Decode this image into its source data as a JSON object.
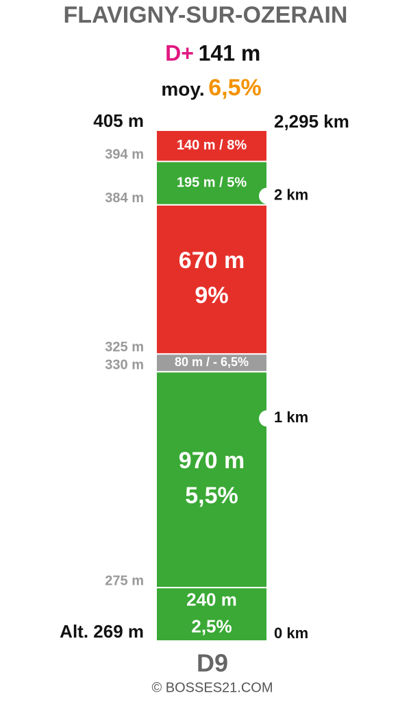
{
  "title": "FLAVIGNY-SUR-OZERAIN",
  "climb": {
    "label": "D+",
    "value": "141 m"
  },
  "average": {
    "label": "moy.",
    "value": "6,5%"
  },
  "total_distance": {
    "value": 2295,
    "label": "2,295 km"
  },
  "segments": [
    {
      "length": 240,
      "text": [
        "240 m",
        "2,5%"
      ],
      "color": "#3aa935"
    },
    {
      "length": 970,
      "text": [
        "970 m",
        "5,5%"
      ],
      "color": "#3aa935"
    },
    {
      "length": 80,
      "text": [
        "80 m / - 6,5%"
      ],
      "color": "#9d9d9d"
    },
    {
      "length": 670,
      "text": [
        "670 m",
        "9%"
      ],
      "color": "#e5302a"
    },
    {
      "length": 195,
      "text": [
        "195 m / 5%"
      ],
      "color": "#3aa935"
    },
    {
      "length": 140,
      "text": [
        "140 m / 8%"
      ],
      "color": "#e5302a"
    }
  ],
  "altitudes": [
    "Alt. 269 m",
    "275 m",
    "330 m",
    "325 m",
    "384 m",
    "394 m",
    "405 m"
  ],
  "km_markers": [
    {
      "value": 0,
      "label": "0 km"
    },
    {
      "value": 1000,
      "label": "1 km"
    },
    {
      "value": 2000,
      "label": "2 km"
    }
  ],
  "road": "D9",
  "credit": "© BOSSES21.COM"
}
